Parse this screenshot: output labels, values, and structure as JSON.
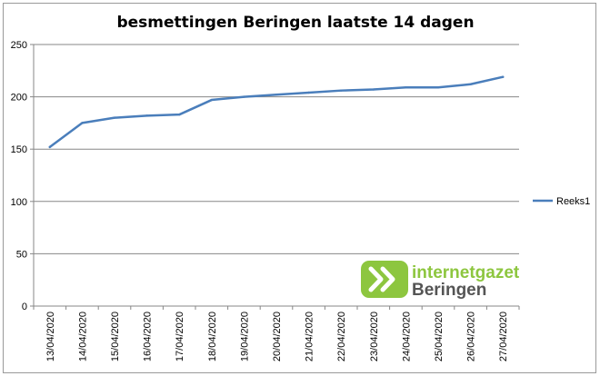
{
  "chart_data": {
    "type": "line",
    "title": "besmettingen Beringen laatste 14 dagen",
    "xlabel": "",
    "ylabel": "",
    "categories": [
      "13/04/2020",
      "14/04/2020",
      "15/04/2020",
      "16/04/2020",
      "17/04/2020",
      "18/04/2020",
      "19/04/2020",
      "20/04/2020",
      "21/04/2020",
      "22/04/2020",
      "23/04/2020",
      "24/04/2020",
      "25/04/2020",
      "26/04/2020",
      "27/04/2020"
    ],
    "series": [
      {
        "name": "Reeks1",
        "values": [
          152,
          175,
          180,
          182,
          183,
          197,
          200,
          202,
          204,
          206,
          207,
          209,
          209,
          212,
          219
        ]
      }
    ],
    "ylim": [
      0,
      250
    ],
    "yticks": [
      0,
      50,
      100,
      150,
      200,
      250
    ],
    "grid": true,
    "legend_position": "right",
    "colors": {
      "series": "#4a7ebb",
      "grid": "#878787",
      "axis": "#878787",
      "logo_green": "#8dc63f",
      "logo_grey": "#555555"
    }
  },
  "watermark": {
    "line1": "internetgazet",
    "line2": "Beringen"
  }
}
